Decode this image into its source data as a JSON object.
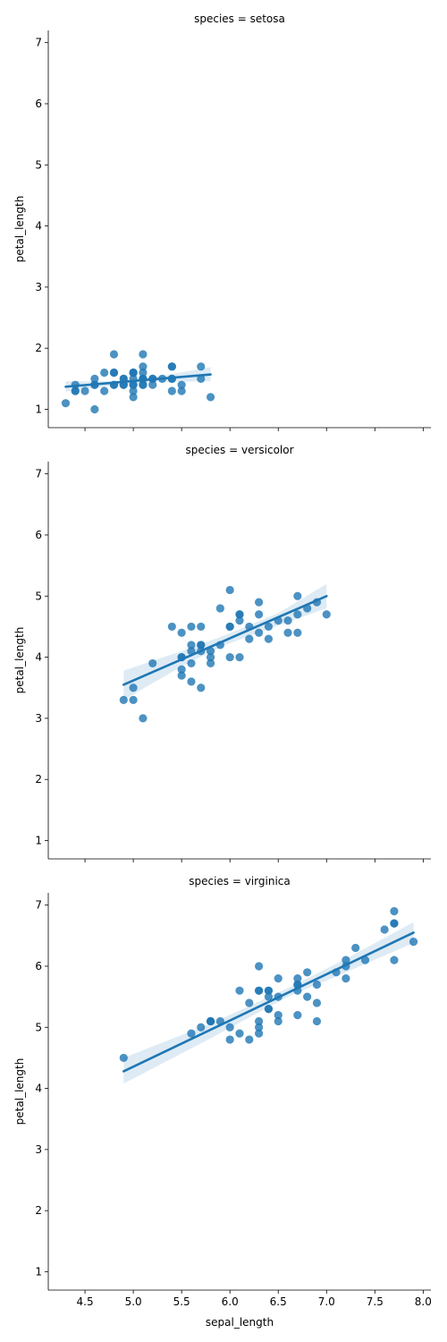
{
  "chart_data": {
    "type": "scatter",
    "facet_by": "species",
    "xlabel": "sepal_length",
    "ylabel": "petal_length",
    "xlim": [
      4.12,
      8.08
    ],
    "ylim": [
      0.7,
      7.2
    ],
    "x_ticks": [
      "4.5",
      "5.0",
      "5.5",
      "6.0",
      "6.5",
      "7.0",
      "7.5",
      "8.0"
    ],
    "y_ticks": [
      "1",
      "2",
      "3",
      "4",
      "5",
      "6",
      "7"
    ],
    "shared_x": true,
    "grid": false,
    "point_color": "#1f77b4",
    "band_color": "#1f77b4",
    "panels": [
      {
        "title": "species = setosa",
        "regression": {
          "x0": 4.3,
          "y0": 1.37,
          "x1": 5.8,
          "y1": 1.57
        },
        "band": [
          [
            4.3,
            1.29,
            1.46
          ],
          [
            4.8,
            1.39,
            1.46
          ],
          [
            5.0,
            1.42,
            1.48
          ],
          [
            5.3,
            1.45,
            1.55
          ],
          [
            5.8,
            1.46,
            1.69
          ]
        ],
        "points": [
          [
            5.1,
            1.4
          ],
          [
            4.9,
            1.4
          ],
          [
            4.7,
            1.3
          ],
          [
            4.6,
            1.5
          ],
          [
            5.0,
            1.4
          ],
          [
            5.4,
            1.7
          ],
          [
            4.6,
            1.4
          ],
          [
            5.0,
            1.5
          ],
          [
            4.4,
            1.4
          ],
          [
            4.9,
            1.5
          ],
          [
            5.4,
            1.5
          ],
          [
            4.8,
            1.6
          ],
          [
            4.8,
            1.4
          ],
          [
            4.3,
            1.1
          ],
          [
            5.8,
            1.2
          ],
          [
            5.7,
            1.5
          ],
          [
            5.4,
            1.3
          ],
          [
            5.1,
            1.4
          ],
          [
            5.7,
            1.7
          ],
          [
            5.1,
            1.5
          ],
          [
            5.4,
            1.7
          ],
          [
            5.1,
            1.5
          ],
          [
            4.6,
            1.0
          ],
          [
            5.1,
            1.7
          ],
          [
            4.8,
            1.9
          ],
          [
            5.0,
            1.6
          ],
          [
            5.0,
            1.6
          ],
          [
            5.2,
            1.5
          ],
          [
            5.2,
            1.4
          ],
          [
            4.7,
            1.6
          ],
          [
            4.8,
            1.6
          ],
          [
            5.4,
            1.5
          ],
          [
            5.2,
            1.5
          ],
          [
            5.5,
            1.4
          ],
          [
            4.9,
            1.5
          ],
          [
            5.0,
            1.2
          ],
          [
            5.5,
            1.3
          ],
          [
            4.9,
            1.4
          ],
          [
            4.4,
            1.3
          ],
          [
            5.1,
            1.5
          ],
          [
            5.0,
            1.3
          ],
          [
            4.5,
            1.3
          ],
          [
            4.4,
            1.3
          ],
          [
            5.0,
            1.6
          ],
          [
            5.1,
            1.9
          ],
          [
            4.8,
            1.4
          ],
          [
            5.1,
            1.6
          ],
          [
            4.6,
            1.4
          ],
          [
            5.3,
            1.5
          ],
          [
            5.0,
            1.4
          ]
        ]
      },
      {
        "title": "species = versicolor",
        "regression": {
          "x0": 4.9,
          "y0": 3.55,
          "x1": 7.0,
          "y1": 5.0
        },
        "band": [
          [
            4.9,
            3.3,
            3.78
          ],
          [
            5.5,
            3.85,
            4.1
          ],
          [
            5.95,
            4.2,
            4.36
          ],
          [
            6.5,
            4.52,
            4.72
          ],
          [
            7.0,
            4.8,
            5.2
          ]
        ],
        "points": [
          [
            7.0,
            4.7
          ],
          [
            6.4,
            4.5
          ],
          [
            6.9,
            4.9
          ],
          [
            5.5,
            4.0
          ],
          [
            6.5,
            4.6
          ],
          [
            5.7,
            4.5
          ],
          [
            6.3,
            4.7
          ],
          [
            4.9,
            3.3
          ],
          [
            6.6,
            4.6
          ],
          [
            5.2,
            3.9
          ],
          [
            5.0,
            3.5
          ],
          [
            5.9,
            4.2
          ],
          [
            6.0,
            4.0
          ],
          [
            6.1,
            4.7
          ],
          [
            5.6,
            3.6
          ],
          [
            6.7,
            4.4
          ],
          [
            5.6,
            4.5
          ],
          [
            5.8,
            4.1
          ],
          [
            6.2,
            4.5
          ],
          [
            5.6,
            3.9
          ],
          [
            5.9,
            4.8
          ],
          [
            6.1,
            4.0
          ],
          [
            6.3,
            4.9
          ],
          [
            6.1,
            4.7
          ],
          [
            6.4,
            4.3
          ],
          [
            6.6,
            4.4
          ],
          [
            6.8,
            4.8
          ],
          [
            6.7,
            5.0
          ],
          [
            6.0,
            4.5
          ],
          [
            5.7,
            3.5
          ],
          [
            5.5,
            3.8
          ],
          [
            5.5,
            3.7
          ],
          [
            5.8,
            3.9
          ],
          [
            6.0,
            5.1
          ],
          [
            5.4,
            4.5
          ],
          [
            6.0,
            4.5
          ],
          [
            6.7,
            4.7
          ],
          [
            6.3,
            4.4
          ],
          [
            5.6,
            4.1
          ],
          [
            5.5,
            4.0
          ],
          [
            5.5,
            4.4
          ],
          [
            6.1,
            4.6
          ],
          [
            5.8,
            4.0
          ],
          [
            5.0,
            3.3
          ],
          [
            5.6,
            4.2
          ],
          [
            5.7,
            4.2
          ],
          [
            5.7,
            4.2
          ],
          [
            6.2,
            4.3
          ],
          [
            5.1,
            3.0
          ],
          [
            5.7,
            4.1
          ]
        ]
      },
      {
        "title": "species = virginica",
        "regression": {
          "x0": 4.9,
          "y0": 4.28,
          "x1": 7.9,
          "y1": 6.55
        },
        "band": [
          [
            4.9,
            4.08,
            4.5
          ],
          [
            5.8,
            4.82,
            5.06
          ],
          [
            6.6,
            5.5,
            5.64
          ],
          [
            7.2,
            5.9,
            6.12
          ],
          [
            7.9,
            6.38,
            6.72
          ]
        ],
        "points": [
          [
            6.3,
            6.0
          ],
          [
            5.8,
            5.1
          ],
          [
            7.1,
            5.9
          ],
          [
            6.3,
            5.6
          ],
          [
            6.5,
            5.8
          ],
          [
            7.6,
            6.6
          ],
          [
            4.9,
            4.5
          ],
          [
            7.3,
            6.3
          ],
          [
            6.7,
            5.8
          ],
          [
            7.2,
            6.1
          ],
          [
            6.5,
            5.1
          ],
          [
            6.4,
            5.3
          ],
          [
            6.8,
            5.5
          ],
          [
            5.7,
            5.0
          ],
          [
            5.8,
            5.1
          ],
          [
            6.4,
            5.3
          ],
          [
            6.5,
            5.5
          ],
          [
            7.7,
            6.7
          ],
          [
            7.7,
            6.9
          ],
          [
            6.0,
            5.0
          ],
          [
            6.9,
            5.7
          ],
          [
            5.6,
            4.9
          ],
          [
            7.7,
            6.7
          ],
          [
            6.3,
            4.9
          ],
          [
            6.7,
            5.7
          ],
          [
            7.2,
            6.0
          ],
          [
            6.2,
            4.8
          ],
          [
            6.1,
            4.9
          ],
          [
            6.4,
            5.6
          ],
          [
            7.2,
            5.8
          ],
          [
            7.4,
            6.1
          ],
          [
            7.9,
            6.4
          ],
          [
            6.4,
            5.6
          ],
          [
            6.3,
            5.1
          ],
          [
            6.1,
            5.6
          ],
          [
            7.7,
            6.1
          ],
          [
            6.3,
            5.6
          ],
          [
            6.4,
            5.5
          ],
          [
            6.0,
            4.8
          ],
          [
            6.9,
            5.4
          ],
          [
            6.7,
            5.6
          ],
          [
            6.9,
            5.1
          ],
          [
            5.8,
            5.1
          ],
          [
            6.8,
            5.9
          ],
          [
            6.7,
            5.7
          ],
          [
            6.7,
            5.2
          ],
          [
            6.3,
            5.0
          ],
          [
            6.5,
            5.2
          ],
          [
            6.2,
            5.4
          ],
          [
            5.9,
            5.1
          ]
        ]
      }
    ]
  }
}
